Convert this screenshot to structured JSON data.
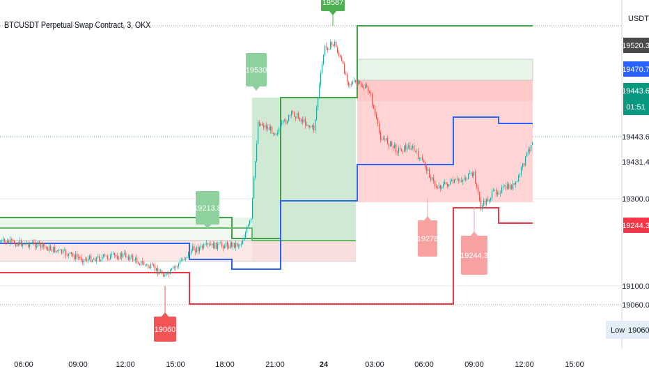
{
  "chart_data": {
    "type": "candlestick-with-levels",
    "title": "BTCUSDT Perpetual Swap Contract, 3, OKX",
    "currency": "USDT",
    "x_ticks": [
      "06:00",
      "09:00",
      "12:00",
      "15:00",
      "18:00",
      "21:00",
      "24",
      "03:00",
      "06:00",
      "09:00",
      "12:00",
      "15:00"
    ],
    "y_ticks": [
      19431.4,
      19300.0,
      19100.0,
      19060.0
    ],
    "price_tags": [
      {
        "label": "19520.3",
        "value": 19520.3,
        "color": "#4a4a4a"
      },
      {
        "label": "19470.7",
        "value": 19470.7,
        "color": "#2962ff"
      },
      {
        "label": "19443.6",
        "value": 19443.6,
        "color": "#089981",
        "sub": "01:51"
      },
      {
        "label": "19443.6",
        "value": 19443.6,
        "color": "none"
      },
      {
        "label": "19244.3",
        "value": 19244.3,
        "color": "#f23645"
      }
    ],
    "pivot_labels": [
      {
        "text": "19530",
        "kind": "high",
        "color": "#8fd19e"
      },
      {
        "text": "19213.8",
        "kind": "high",
        "color": "#8fd19e"
      },
      {
        "text": "19587",
        "kind": "high",
        "color": "#4caf50"
      },
      {
        "text": "19060",
        "kind": "low",
        "color": "#f05454"
      },
      {
        "text": "19278",
        "kind": "low",
        "color": "#f7a1a1"
      },
      {
        "text": "19244.3",
        "kind": "low",
        "color": "#f7a1a1"
      }
    ],
    "low_box": {
      "label": "Low",
      "value": "19060.0"
    },
    "colors": {
      "up": "#26a69a",
      "down": "#ef5350",
      "upper_line": "#43a047",
      "mid_line": "#2962ff",
      "lower_line": "#f23645"
    }
  }
}
